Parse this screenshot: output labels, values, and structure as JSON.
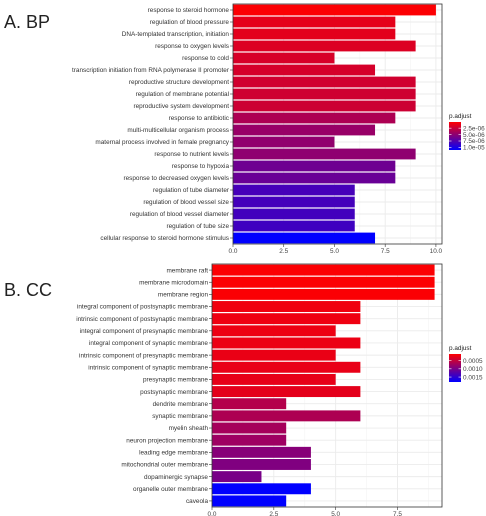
{
  "panels": [
    {
      "panel_label": "A.  BP",
      "legend": {
        "title": "p.adjust",
        "tick_labels": [
          "2.5e-06",
          "5.0e-06",
          "7.5e-06",
          "1.0e-05"
        ],
        "tick_values": [
          2.5e-06,
          5e-06,
          7.5e-06,
          1e-05
        ],
        "range": [
          1e-07,
          1.1e-05
        ]
      }
    },
    {
      "panel_label": "B.  CC",
      "legend": {
        "title": "p.adjust",
        "tick_labels": [
          "0.0005",
          "0.0010",
          "0.0015"
        ],
        "tick_values": [
          0.0005,
          0.001,
          0.0015
        ],
        "range": [
          0.0001,
          0.0018
        ]
      }
    }
  ],
  "colors": {
    "high": "#FF0000",
    "low": "#0000FF",
    "grid": "#EBEBEB",
    "panel_bg": "#FFFFFF",
    "panel_border": "#333333"
  },
  "chart_data": [
    {
      "type": "bar",
      "orientation": "horizontal",
      "categories": [
        "response to steroid hormone",
        "regulation of blood pressure",
        "DNA-templated transcription, initiation",
        "response to oxygen levels",
        "response to cold",
        "transcription initiation from RNA polymerase II promoter",
        "reproductive structure development",
        "regulation of membrane potential",
        "reproductive system development",
        "response to antibiotic",
        "multi-multicellular organism process",
        "maternal process involved in female pregnancy",
        "response to nutrient levels",
        "response to hypoxia",
        "response to decreased oxygen levels",
        "regulation of tube diameter",
        "regulation of blood vessel size",
        "regulation of blood vessel diameter",
        "regulation of tube size",
        "cellular response to steroid hormone stimulus"
      ],
      "values": [
        10,
        8,
        8,
        9,
        5,
        7,
        9,
        9,
        9,
        8,
        7,
        5,
        9,
        8,
        8,
        6,
        6,
        6,
        6,
        7
      ],
      "color_values": [
        2.2e-07,
        1.2e-06,
        1.3e-06,
        1.6e-06,
        1.8e-06,
        1.9e-06,
        2.1e-06,
        2.2e-06,
        2.3e-06,
        3.6e-06,
        4.5e-06,
        4.8e-06,
        4.9e-06,
        6.3e-06,
        6.5e-06,
        8e-06,
        8.1e-06,
        8.2e-06,
        8.3e-06,
        1.1e-05
      ],
      "xlim": [
        0,
        10.3
      ],
      "x_ticks": [
        0,
        2.5,
        5,
        7.5,
        10
      ],
      "x_tick_labels": [
        "0.0",
        "2.5",
        "5.0",
        "7.5",
        "10.0"
      ],
      "grid": true,
      "legend_position": "right"
    },
    {
      "type": "bar",
      "orientation": "horizontal",
      "categories": [
        "membrane raft",
        "membrane microdomain",
        "membrane region",
        "integral component of postsynaptic membrane",
        "intrinsic component of postsynaptic membrane",
        "integral component of presynaptic membrane",
        "integral component of synaptic membrane",
        "intrinsic component of presynaptic membrane",
        "intrinsic component of synaptic membrane",
        "presynaptic membrane",
        "postsynaptic membrane",
        "dendrite membrane",
        "synaptic membrane",
        "myelin sheath",
        "neuron projection membrane",
        "leading edge membrane",
        "mitochondrial outer membrane",
        "dopaminergic synapse",
        "organelle outer membrane",
        "caveola"
      ],
      "values": [
        9,
        9,
        9,
        6,
        6,
        5,
        6,
        5,
        6,
        5,
        6,
        3,
        6,
        3,
        3,
        4,
        4,
        2,
        4,
        3
      ],
      "color_values": [
        0.00012,
        0.00012,
        0.00013,
        0.0002,
        0.00021,
        0.00022,
        0.00023,
        0.00024,
        0.00025,
        0.00026,
        0.00028,
        0.0006,
        0.00065,
        0.0007,
        0.00075,
        0.0009,
        0.00095,
        0.001,
        0.0018,
        0.00185
      ],
      "xlim": [
        0,
        9.3
      ],
      "x_ticks": [
        0,
        2.5,
        5,
        7.5
      ],
      "x_tick_labels": [
        "0.0",
        "2.5",
        "5.0",
        "7.5"
      ],
      "grid": true,
      "legend_position": "right"
    }
  ]
}
